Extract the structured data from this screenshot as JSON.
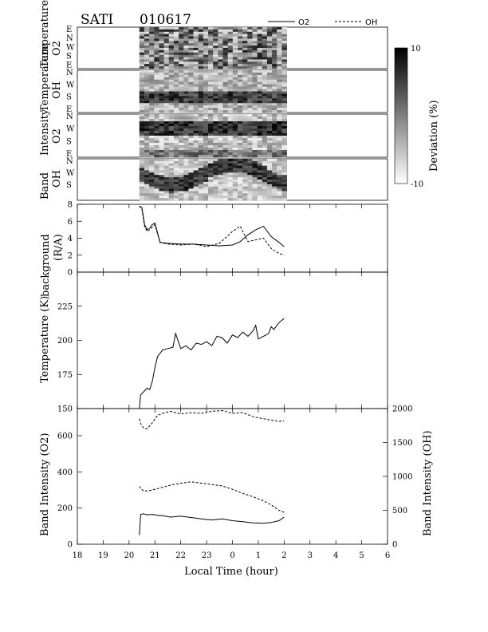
{
  "header": {
    "title": "SATI",
    "date": "010617"
  },
  "legend": [
    {
      "label": "O2",
      "style": "solid"
    },
    {
      "label": "OH",
      "style": "dashed"
    }
  ],
  "colorbar": {
    "label": "Deviation (%)",
    "max_label": "10",
    "min_label": "-10"
  },
  "heatmaps": [
    {
      "id": "o2-temp",
      "label_line1": "Temperature",
      "label_line2": "O2",
      "dir_labels": [
        "E",
        "N",
        "W",
        "S",
        "E"
      ]
    },
    {
      "id": "oh-temp",
      "label_line1": "Temperature",
      "label_line2": "OH",
      "dir_labels": [
        "N",
        "W",
        "S",
        "E"
      ]
    },
    {
      "id": "o2-int",
      "label_line1": "Intensity",
      "label_line2": "O2",
      "dir_labels": [
        "N",
        "W",
        "S",
        "E"
      ]
    },
    {
      "id": "oh-int",
      "label_line1": "Band",
      "label_line2": "OH",
      "dir_labels": [
        "N",
        "W",
        "S"
      ]
    }
  ],
  "x_axis": {
    "label": "Local Time (hour)",
    "ticks": [
      "18",
      "19",
      "20",
      "21",
      "22",
      "23",
      "0",
      "1",
      "2",
      "3",
      "4",
      "5",
      "6"
    ]
  },
  "chart_data": [
    {
      "type": "heatmap",
      "title": "Temperature O2 / Temperature OH / Band Intensity O2 / Band Intensity OH keograms",
      "y_categories": [
        "E",
        "N",
        "W",
        "S",
        "E"
      ],
      "x_range_hours": [
        20.4,
        26.1
      ],
      "value_range": [
        -10,
        10
      ]
    },
    {
      "type": "line",
      "ylabel": "background (R/A)",
      "ylim": [
        0,
        8
      ],
      "yticks": [
        "0",
        "2",
        "4",
        "6",
        "8"
      ],
      "x": [
        20.4,
        20.5,
        20.6,
        20.7,
        20.8,
        20.9,
        21.0,
        21.2,
        21.5,
        22.0,
        22.5,
        23.0,
        23.5,
        24.0,
        24.3,
        24.6,
        24.9,
        25.2,
        25.5,
        25.8,
        26.0
      ],
      "series": [
        {
          "name": "O2",
          "values": [
            7.8,
            7.6,
            5.6,
            5.0,
            5.2,
            5.6,
            5.8,
            3.5,
            3.4,
            3.3,
            3.3,
            3.2,
            3.1,
            3.2,
            3.6,
            4.4,
            5.0,
            5.4,
            4.2,
            3.5,
            3.0
          ]
        },
        {
          "name": "OH",
          "values": [
            7.8,
            7.4,
            5.4,
            4.8,
            5.0,
            5.3,
            5.6,
            3.5,
            3.3,
            3.2,
            3.3,
            3.0,
            3.4,
            4.8,
            5.4,
            3.6,
            3.8,
            4.0,
            2.8,
            2.2,
            2.0
          ]
        }
      ]
    },
    {
      "type": "line",
      "ylabel": "Temperature (K)",
      "ylim": [
        150,
        250
      ],
      "yticks": [
        "150",
        "175",
        "200",
        "225"
      ],
      "x": [
        20.4,
        20.45,
        20.6,
        20.7,
        20.8,
        20.9,
        21.0,
        21.1,
        21.3,
        21.5,
        21.7,
        21.8,
        22.0,
        22.2,
        22.4,
        22.6,
        22.8,
        23.0,
        23.2,
        23.4,
        23.6,
        23.8,
        24.0,
        24.2,
        24.4,
        24.6,
        24.8,
        24.9,
        25.0,
        25.2,
        25.4,
        25.5,
        25.6,
        25.8,
        26.0
      ],
      "series": [
        {
          "name": "O2",
          "values": [
            150,
            160,
            163,
            165,
            164,
            170,
            180,
            188,
            193,
            194,
            195,
            205,
            194,
            196,
            193,
            198,
            197,
            199,
            196,
            203,
            202,
            198,
            204,
            202,
            206,
            203,
            207,
            211,
            201,
            203,
            205,
            210,
            208,
            213,
            216
          ]
        }
      ]
    },
    {
      "type": "line",
      "ylabel": "Band Intensity (O2)",
      "y2label": "Band Intensity (OH)",
      "ylim": [
        0,
        750
      ],
      "y2lim": [
        0,
        2000
      ],
      "yticks": [
        "0",
        "200",
        "400",
        "600"
      ],
      "y2ticks": [
        "0",
        "500",
        "1000",
        "1500",
        "2000"
      ],
      "x": [
        20.4,
        20.45,
        20.55,
        20.7,
        20.9,
        21.1,
        21.3,
        21.6,
        22.0,
        22.4,
        22.8,
        23.2,
        23.6,
        24.0,
        24.4,
        24.8,
        25.2,
        25.5,
        25.8,
        26.0
      ],
      "series": [
        {
          "name": "O2",
          "values": [
            50,
            165,
            168,
            163,
            165,
            160,
            158,
            150,
            155,
            148,
            140,
            134,
            140,
            130,
            125,
            118,
            116,
            120,
            130,
            150
          ]
        },
        {
          "name": "OH",
          "axis": "right",
          "values": [
            855,
            820,
            790,
            785,
            800,
            820,
            840,
            870,
            900,
            920,
            900,
            880,
            860,
            810,
            750,
            700,
            640,
            580,
            500,
            470
          ]
        },
        {
          "name": "OH",
          "axis": "right",
          "values": [
            1850,
            1780,
            1720,
            1700,
            1790,
            1900,
            1930,
            1960,
            1920,
            1940,
            1930,
            1960,
            1970,
            1930,
            1940,
            1880,
            1850,
            1830,
            1810,
            1820
          ]
        }
      ]
    }
  ]
}
